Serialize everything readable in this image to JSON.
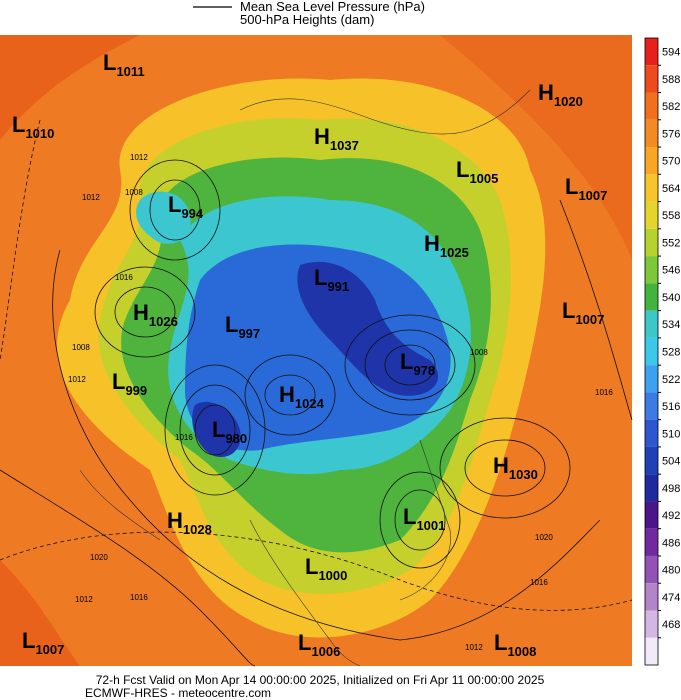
{
  "legend": [
    "Mean Sea Level Pressure (hPa)",
    "500-hPa Heights (dam)"
  ],
  "centers": [
    {
      "type": "L",
      "value": "1011"
    },
    {
      "type": "L",
      "value": "1010"
    },
    {
      "type": "H",
      "value": "1020"
    },
    {
      "type": "H",
      "value": "1037"
    },
    {
      "type": "L",
      "value": "1005"
    },
    {
      "type": "L",
      "value": "1007"
    },
    {
      "type": "L",
      "value": "994"
    },
    {
      "type": "H",
      "value": "1025"
    },
    {
      "type": "L",
      "value": "991"
    },
    {
      "type": "H",
      "value": "1026"
    },
    {
      "type": "L",
      "value": "997"
    },
    {
      "type": "L",
      "value": "1007"
    },
    {
      "type": "L",
      "value": "978"
    },
    {
      "type": "L",
      "value": "999"
    },
    {
      "type": "H",
      "value": "1024"
    },
    {
      "type": "L",
      "value": "980"
    },
    {
      "type": "H",
      "value": "1030"
    },
    {
      "type": "H",
      "value": "1028"
    },
    {
      "type": "L",
      "value": "1001"
    },
    {
      "type": "L",
      "value": "1000"
    },
    {
      "type": "L",
      "value": "1007"
    },
    {
      "type": "L",
      "value": "1006"
    },
    {
      "type": "L",
      "value": "1008"
    }
  ],
  "contour_labels": [
    "1012",
    "1008",
    "1012",
    "1016",
    "1008",
    "1012",
    "1016",
    "1020",
    "1016",
    "1012",
    "1020",
    "1016",
    "1012",
    "1008",
    "1016"
  ],
  "colorbar": {
    "ticks": [
      594,
      588,
      582,
      576,
      570,
      564,
      558,
      552,
      546,
      540,
      534,
      528,
      522,
      516,
      510,
      504,
      498,
      492,
      486,
      480,
      474,
      468
    ],
    "top_color": "#e8201c",
    "colors": [
      "#ee4a1e",
      "#f0701e",
      "#f48a22",
      "#f7a626",
      "#f8c42a",
      "#e4d42c",
      "#b6d22e",
      "#7cc83a",
      "#42b43e",
      "#3cc8c8",
      "#3cc8e8",
      "#3ca2ee",
      "#3a7ce4",
      "#2c56d2",
      "#2040b6",
      "#1e2a9e",
      "#4a168a",
      "#72289e",
      "#9452b4",
      "#b484c8",
      "#d4b6e4",
      "#f2eaf8"
    ]
  },
  "footer": [
    "72-h Fcst Valid on Mon Apr 14 00:00:00 2025, Initialized on Fri Apr 11 00:00:00 2025",
    "ECMWF-HRES - meteocentre.com"
  ]
}
